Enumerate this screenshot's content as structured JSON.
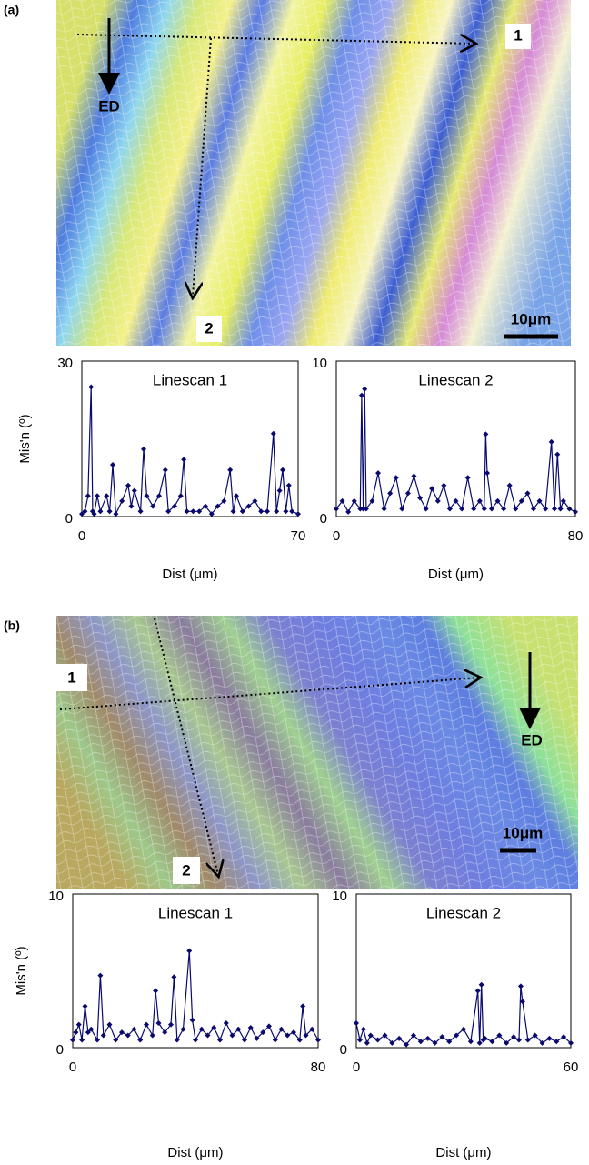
{
  "panels": [
    {
      "label": "(a)",
      "annotations": {
        "line1": "1",
        "line2": "2",
        "direction": "ED",
        "scale": "10μm"
      }
    },
    {
      "label": "(b)",
      "annotations": {
        "line1": "1",
        "line2": "2",
        "direction": "ED",
        "scale": "10μm"
      }
    }
  ],
  "chart_data": [
    {
      "type": "line",
      "title": "Linescan 1",
      "xlabel": "Dist (μm)",
      "ylabel": "Mis'n (º)",
      "color": "#0a0a6e",
      "marker": "diamond",
      "xlim": [
        0,
        70
      ],
      "xticks": [
        0,
        70
      ],
      "ylim": [
        0,
        30
      ],
      "yticks": [
        0,
        30
      ],
      "x": [
        0,
        1,
        2,
        3,
        3.5,
        4,
        5,
        6,
        8,
        9,
        10,
        11,
        13,
        15,
        16,
        17,
        19,
        20,
        21,
        23,
        25,
        27,
        28,
        30,
        32,
        33,
        34,
        36,
        38,
        40,
        42,
        44,
        46,
        48,
        49,
        50,
        52,
        54,
        56,
        58,
        60,
        62,
        63,
        64,
        65,
        66,
        67,
        68,
        70
      ],
      "values": [
        0.5,
        1,
        4,
        25,
        1,
        0.5,
        4,
        1,
        4,
        1,
        10,
        0.5,
        3,
        6,
        2,
        5,
        1,
        13,
        4,
        2,
        4,
        9,
        1,
        2,
        4,
        11,
        1,
        1,
        1,
        2,
        0.5,
        2,
        3,
        9,
        1,
        4,
        1,
        2,
        3,
        1,
        1,
        16,
        1,
        5,
        9,
        1,
        6,
        1,
        0.5
      ]
    },
    {
      "type": "line",
      "title": "Linescan 2",
      "xlabel": "Dist (μm)",
      "color": "#0a0a6e",
      "marker": "diamond",
      "xlim": [
        0,
        80
      ],
      "xticks": [
        0,
        80
      ],
      "ylim": [
        0,
        10
      ],
      "yticks": [
        0,
        10
      ],
      "x": [
        0,
        2,
        4,
        6,
        8,
        8.5,
        9,
        9.5,
        10,
        12,
        14,
        16,
        18,
        20,
        22,
        24,
        26,
        28,
        30,
        32,
        34,
        36,
        38,
        40,
        42,
        44,
        46,
        48,
        49.5,
        50,
        50.5,
        52,
        54,
        56,
        58,
        60,
        62,
        64,
        66,
        68,
        70,
        72,
        73,
        74,
        75,
        76,
        78,
        80
      ],
      "values": [
        0.5,
        1,
        0.3,
        1,
        0.5,
        7.8,
        0.5,
        8.2,
        0.5,
        1,
        2.8,
        0.5,
        1.5,
        2.5,
        0.5,
        1.5,
        2.6,
        1.2,
        0.5,
        1.8,
        1,
        2,
        0.5,
        1,
        0.5,
        2.5,
        0.5,
        1,
        0.5,
        5.3,
        2.8,
        0.5,
        1,
        0.5,
        2,
        0.5,
        1,
        1.5,
        0.5,
        1,
        0.5,
        4.8,
        0.5,
        4,
        0.5,
        1,
        0.5,
        0.3
      ]
    },
    {
      "type": "line",
      "title": "Linescan 1",
      "xlabel": "Dist (μm)",
      "ylabel": "Mis'n (º)",
      "color": "#0a0a6e",
      "marker": "diamond",
      "xlim": [
        0,
        80
      ],
      "xticks": [
        0,
        80
      ],
      "ylim": [
        0,
        10
      ],
      "yticks": [
        0,
        10
      ],
      "x": [
        0,
        1,
        2,
        3,
        4,
        5,
        6,
        8,
        9,
        10,
        12,
        14,
        16,
        18,
        20,
        22,
        24,
        26,
        27,
        28,
        30,
        32,
        33,
        34,
        36,
        38,
        39,
        40,
        42,
        44,
        46,
        48,
        50,
        52,
        54,
        56,
        58,
        60,
        62,
        64,
        66,
        68,
        70,
        72,
        74,
        75,
        76,
        78,
        80
      ],
      "values": [
        0.5,
        1,
        1.5,
        0.5,
        2.7,
        1,
        1.2,
        0.5,
        4.7,
        0.8,
        1.5,
        0.5,
        1,
        0.8,
        1.2,
        0.5,
        1.5,
        0.8,
        3.7,
        1.6,
        1,
        1.5,
        4.6,
        0.5,
        1.2,
        6.3,
        1.8,
        0.5,
        1.2,
        0.8,
        1.3,
        0.5,
        1.6,
        0.8,
        1.2,
        0.5,
        1.3,
        0.6,
        1,
        1.4,
        0.5,
        1.2,
        0.8,
        1,
        0.5,
        2.7,
        0.8,
        1.2,
        0.5
      ]
    },
    {
      "type": "line",
      "title": "Linescan 2",
      "xlabel": "Dist (μm)",
      "color": "#0a0a6e",
      "marker": "diamond",
      "xlim": [
        0,
        60
      ],
      "xticks": [
        0,
        60
      ],
      "ylim": [
        0,
        10
      ],
      "yticks": [
        0,
        10
      ],
      "x": [
        0,
        1,
        2,
        3,
        4,
        6,
        8,
        10,
        12,
        14,
        16,
        18,
        20,
        22,
        24,
        26,
        28,
        30,
        32,
        34,
        34.5,
        35,
        35.5,
        36,
        38,
        40,
        42,
        44,
        45.5,
        46,
        46.5,
        48,
        50,
        52,
        54,
        56,
        58,
        60
      ],
      "values": [
        1.6,
        0.5,
        1.2,
        0.3,
        0.8,
        0.5,
        0.8,
        0.3,
        0.6,
        0.2,
        0.8,
        0.4,
        0.6,
        0.3,
        0.7,
        0.4,
        0.8,
        1.2,
        0.4,
        3.7,
        0.3,
        4.1,
        0.5,
        0.6,
        0.4,
        0.8,
        0.3,
        0.7,
        0.5,
        4,
        3,
        0.5,
        0.8,
        0.3,
        0.6,
        0.4,
        0.7,
        0.3
      ]
    }
  ]
}
